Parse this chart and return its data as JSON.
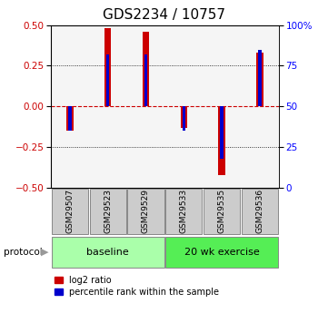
{
  "title": "GDS2234 / 10757",
  "samples": [
    "GSM29507",
    "GSM29523",
    "GSM29529",
    "GSM29533",
    "GSM29535",
    "GSM29536"
  ],
  "log2_ratio": [
    -0.15,
    0.48,
    0.46,
    -0.13,
    -0.42,
    0.33
  ],
  "percentile_rank": [
    35,
    82,
    82,
    35,
    18,
    85
  ],
  "protocol_groups": [
    {
      "label": "baseline",
      "start": 0,
      "end": 3,
      "color": "#aaffaa"
    },
    {
      "label": "20 wk exercise",
      "start": 3,
      "end": 6,
      "color": "#55ee55"
    }
  ],
  "bar_color_red": "#cc0000",
  "bar_color_blue": "#0000cc",
  "ylim_left": [
    -0.5,
    0.5
  ],
  "ylim_right": [
    0,
    100
  ],
  "yticks_left": [
    -0.5,
    -0.25,
    0,
    0.25,
    0.5
  ],
  "yticks_right": [
    0,
    25,
    50,
    75,
    100
  ],
  "red_bar_width": 0.18,
  "blue_bar_width": 0.08,
  "bg_color": "#ffffff",
  "plot_bg": "#f5f5f5",
  "title_fontsize": 11,
  "tick_fontsize": 7.5,
  "legend_fontsize": 7,
  "sample_fontsize": 6.5,
  "proto_fontsize": 8
}
